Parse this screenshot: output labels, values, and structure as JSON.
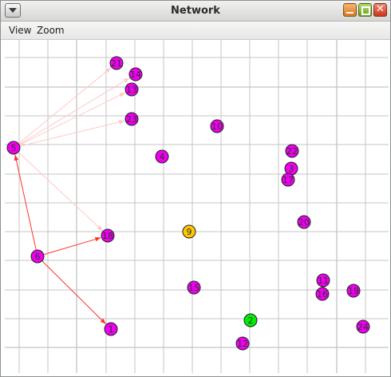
{
  "window": {
    "title": "Network"
  },
  "menu": {
    "items": [
      {
        "label": "View"
      },
      {
        "label": "Zoom"
      }
    ]
  },
  "colors": {
    "node_default": "#ee00ee",
    "node_highlight_yellow": "#ffc800",
    "node_highlight_green": "#00ee00",
    "edge_strong": "#ff3030",
    "edge_faint": "#ffc8c8",
    "grid": "#c4c4c4"
  },
  "network": {
    "nodes": [
      {
        "id": "1",
        "color": "default"
      },
      {
        "id": "2",
        "color": "green"
      },
      {
        "id": "3",
        "color": "default"
      },
      {
        "id": "4",
        "color": "default"
      },
      {
        "id": "5",
        "color": "default"
      },
      {
        "id": "6",
        "color": "default"
      },
      {
        "id": "9",
        "color": "yellow"
      },
      {
        "id": "10",
        "color": "default"
      },
      {
        "id": "11",
        "color": "default"
      },
      {
        "id": "12",
        "color": "default"
      },
      {
        "id": "13",
        "color": "default"
      },
      {
        "id": "14",
        "color": "default"
      },
      {
        "id": "15",
        "color": "default"
      },
      {
        "id": "16",
        "color": "default"
      },
      {
        "id": "17",
        "color": "default"
      },
      {
        "id": "18",
        "color": "default"
      },
      {
        "id": "19",
        "color": "default"
      },
      {
        "id": "20",
        "color": "default"
      },
      {
        "id": "21",
        "color": "default"
      },
      {
        "id": "22",
        "color": "default"
      },
      {
        "id": "23",
        "color": "default"
      },
      {
        "id": "24",
        "color": "default"
      }
    ],
    "edges": [
      {
        "from": "6",
        "to": "5",
        "strength": "strong"
      },
      {
        "from": "6",
        "to": "18",
        "strength": "strong"
      },
      {
        "from": "6",
        "to": "1",
        "strength": "strong"
      },
      {
        "from": "5",
        "to": "21",
        "strength": "faint"
      },
      {
        "from": "5",
        "to": "14",
        "strength": "faint"
      },
      {
        "from": "5",
        "to": "13",
        "strength": "faint"
      },
      {
        "from": "5",
        "to": "23",
        "strength": "faint"
      },
      {
        "from": "5",
        "to": "18",
        "strength": "faint"
      }
    ]
  }
}
